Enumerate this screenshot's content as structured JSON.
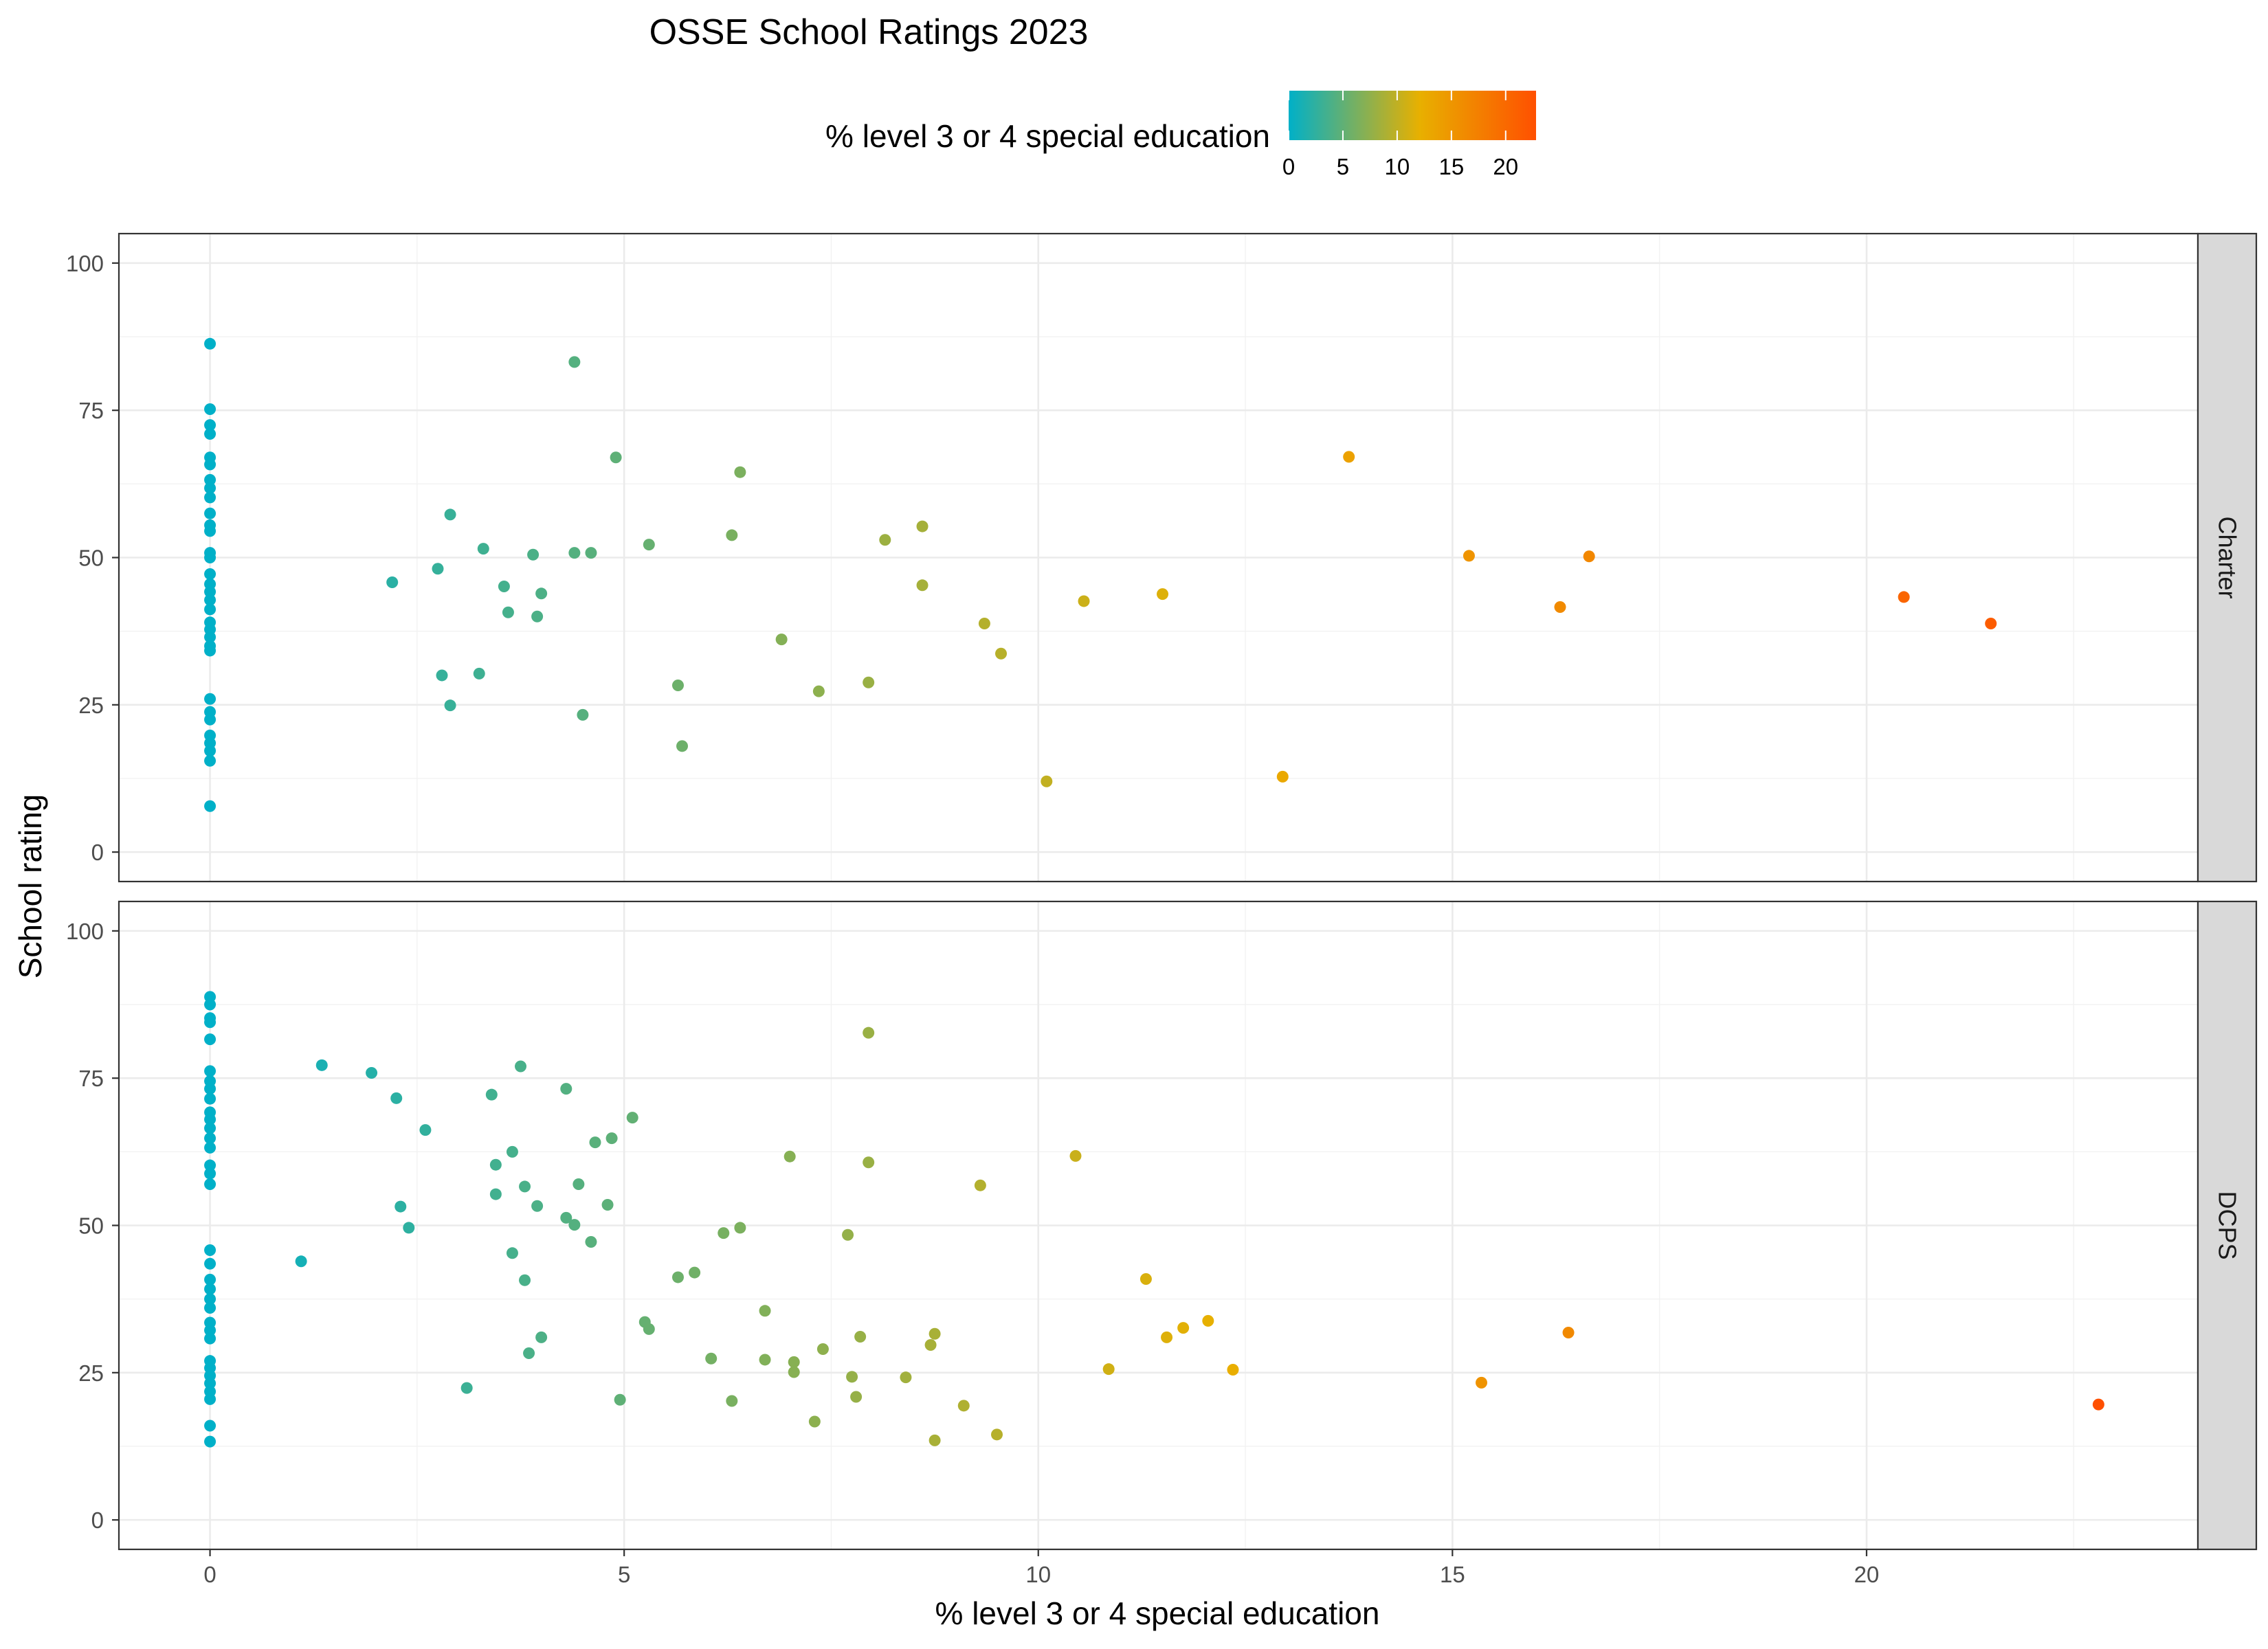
{
  "chart_data": {
    "type": "scatter",
    "title": "OSSE School Ratings 2023",
    "xlabel": "% level 3 or 4 special education",
    "ylabel": "School rating",
    "xlim": [
      -1.1,
      24
    ],
    "ylim": [
      -5,
      105
    ],
    "x_ticks": [
      0,
      5,
      10,
      15,
      20
    ],
    "y_ticks": [
      0,
      25,
      50,
      75,
      100
    ],
    "grid": true,
    "legend": {
      "title": "% level 3 or 4 special education",
      "position": "top",
      "ticks": [
        0,
        5,
        10,
        15,
        20
      ],
      "range": [
        0,
        22.8
      ],
      "colors": [
        "#00b0c8",
        "#e8b000",
        "#ff5000"
      ]
    },
    "panels": [
      {
        "label": "Charter",
        "points": [
          [
            0,
            86.3
          ],
          [
            0,
            75.2
          ],
          [
            0,
            72.5
          ],
          [
            0,
            71.0
          ],
          [
            0,
            67.0
          ],
          [
            0,
            65.8
          ],
          [
            0,
            63.2
          ],
          [
            0,
            61.8
          ],
          [
            0,
            60.2
          ],
          [
            0,
            57.5
          ],
          [
            0,
            55.5
          ],
          [
            0,
            54.5
          ],
          [
            0,
            50.8
          ],
          [
            0,
            50.0
          ],
          [
            0,
            47.2
          ],
          [
            0,
            45.5
          ],
          [
            0,
            44.2
          ],
          [
            0,
            42.8
          ],
          [
            0,
            41.2
          ],
          [
            0,
            39.0
          ],
          [
            0,
            37.8
          ],
          [
            0,
            36.5
          ],
          [
            0,
            35.0
          ],
          [
            0,
            34.2
          ],
          [
            0,
            26.0
          ],
          [
            0,
            23.8
          ],
          [
            0,
            22.5
          ],
          [
            0,
            19.8
          ],
          [
            0,
            18.5
          ],
          [
            0,
            17.2
          ],
          [
            0,
            15.5
          ],
          [
            0,
            7.8
          ],
          [
            4.4,
            83.2
          ],
          [
            4.9,
            67.0
          ],
          [
            6.4,
            64.5
          ],
          [
            2.9,
            57.3
          ],
          [
            3.3,
            51.5
          ],
          [
            3.9,
            50.5
          ],
          [
            4.4,
            50.8
          ],
          [
            4.6,
            50.8
          ],
          [
            5.3,
            52.2
          ],
          [
            6.3,
            53.8
          ],
          [
            2.2,
            45.8
          ],
          [
            2.75,
            48.1
          ],
          [
            3.55,
            45.1
          ],
          [
            4.0,
            43.9
          ],
          [
            3.6,
            40.7
          ],
          [
            3.95,
            40.0
          ],
          [
            2.8,
            30.0
          ],
          [
            3.25,
            30.3
          ],
          [
            2.9,
            24.9
          ],
          [
            4.5,
            23.3
          ],
          [
            5.65,
            28.3
          ],
          [
            5.7,
            18.0
          ],
          [
            6.9,
            36.1
          ],
          [
            7.35,
            27.3
          ],
          [
            7.95,
            28.8
          ],
          [
            8.15,
            53.0
          ],
          [
            8.6,
            55.3
          ],
          [
            8.6,
            45.3
          ],
          [
            9.35,
            38.8
          ],
          [
            9.55,
            33.7
          ],
          [
            10.1,
            12.0
          ],
          [
            10.55,
            42.6
          ],
          [
            11.5,
            43.8
          ],
          [
            12.95,
            12.8
          ],
          [
            13.75,
            67.1
          ],
          [
            15.2,
            50.3
          ],
          [
            16.3,
            41.6
          ],
          [
            16.65,
            50.2
          ],
          [
            20.45,
            43.3
          ],
          [
            21.5,
            38.8
          ]
        ]
      },
      {
        "label": "DCPS",
        "points": [
          [
            0,
            88.8
          ],
          [
            0,
            87.5
          ],
          [
            0,
            85.2
          ],
          [
            0,
            84.5
          ],
          [
            0,
            81.6
          ],
          [
            0,
            76.2
          ],
          [
            0,
            74.5
          ],
          [
            0,
            73.2
          ],
          [
            0,
            71.5
          ],
          [
            0,
            69.2
          ],
          [
            0,
            68.0
          ],
          [
            0,
            66.5
          ],
          [
            0,
            64.8
          ],
          [
            0,
            63.2
          ],
          [
            0,
            60.2
          ],
          [
            0,
            58.8
          ],
          [
            0,
            57.0
          ],
          [
            0,
            45.8
          ],
          [
            0,
            43.5
          ],
          [
            0,
            40.8
          ],
          [
            0,
            39.2
          ],
          [
            0,
            37.5
          ],
          [
            0,
            36.0
          ],
          [
            0,
            33.5
          ],
          [
            0,
            32.2
          ],
          [
            0,
            30.8
          ],
          [
            0,
            27.0
          ],
          [
            0,
            25.8
          ],
          [
            0,
            24.5
          ],
          [
            0,
            23.2
          ],
          [
            0,
            21.8
          ],
          [
            0,
            20.5
          ],
          [
            0,
            16.0
          ],
          [
            0,
            13.3
          ],
          [
            1.1,
            43.9
          ],
          [
            1.35,
            77.2
          ],
          [
            1.95,
            75.9
          ],
          [
            2.25,
            71.6
          ],
          [
            2.6,
            66.2
          ],
          [
            2.3,
            53.2
          ],
          [
            2.4,
            49.6
          ],
          [
            3.4,
            72.2
          ],
          [
            3.75,
            77.0
          ],
          [
            4.3,
            73.2
          ],
          [
            3.45,
            60.3
          ],
          [
            3.65,
            62.5
          ],
          [
            3.8,
            56.6
          ],
          [
            3.45,
            55.3
          ],
          [
            3.95,
            53.3
          ],
          [
            4.3,
            51.3
          ],
          [
            4.45,
            57.0
          ],
          [
            4.4,
            50.1
          ],
          [
            4.6,
            47.2
          ],
          [
            4.65,
            64.1
          ],
          [
            4.85,
            64.8
          ],
          [
            5.1,
            68.3
          ],
          [
            4.8,
            53.5
          ],
          [
            3.65,
            45.3
          ],
          [
            3.8,
            40.7
          ],
          [
            3.1,
            22.4
          ],
          [
            3.85,
            28.3
          ],
          [
            4.0,
            31.0
          ],
          [
            4.95,
            20.4
          ],
          [
            5.25,
            33.6
          ],
          [
            5.3,
            32.4
          ],
          [
            5.65,
            41.2
          ],
          [
            5.85,
            42.0
          ],
          [
            6.05,
            27.4
          ],
          [
            6.2,
            48.7
          ],
          [
            6.3,
            20.2
          ],
          [
            6.4,
            49.6
          ],
          [
            6.7,
            35.5
          ],
          [
            6.7,
            27.2
          ],
          [
            7.0,
            61.7
          ],
          [
            7.05,
            26.8
          ],
          [
            7.05,
            25.1
          ],
          [
            7.3,
            16.7
          ],
          [
            7.4,
            29.0
          ],
          [
            7.7,
            48.4
          ],
          [
            7.75,
            24.3
          ],
          [
            7.8,
            20.9
          ],
          [
            7.85,
            31.1
          ],
          [
            7.95,
            82.7
          ],
          [
            7.95,
            60.7
          ],
          [
            8.4,
            24.2
          ],
          [
            8.7,
            29.7
          ],
          [
            8.75,
            31.6
          ],
          [
            8.75,
            13.5
          ],
          [
            9.1,
            19.4
          ],
          [
            9.3,
            56.8
          ],
          [
            9.5,
            14.5
          ],
          [
            10.45,
            61.8
          ],
          [
            10.85,
            25.6
          ],
          [
            11.3,
            40.9
          ],
          [
            11.55,
            31.0
          ],
          [
            11.75,
            32.6
          ],
          [
            12.05,
            33.8
          ],
          [
            12.35,
            25.5
          ],
          [
            15.35,
            23.3
          ],
          [
            16.4,
            31.8
          ],
          [
            22.8,
            19.6
          ]
        ]
      }
    ]
  }
}
